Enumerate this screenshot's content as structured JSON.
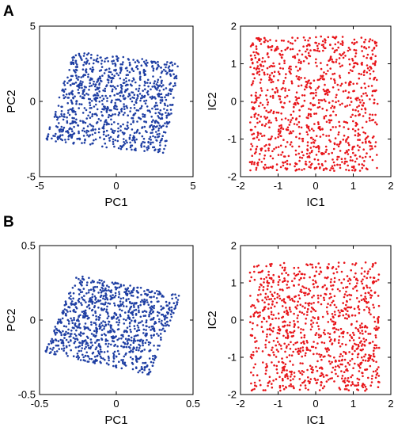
{
  "panels": [
    {
      "label": "A"
    },
    {
      "label": "B"
    }
  ],
  "chart_data": [
    {
      "type": "scatter",
      "panel": "A",
      "xlabel": "PC1",
      "ylabel": "PC2",
      "xlim": [
        -5,
        5
      ],
      "ylim": [
        -5,
        5
      ],
      "xticks": [
        -5,
        0,
        5
      ],
      "yticks": [
        -5,
        0,
        5
      ],
      "color": "#1f3fa3",
      "point_count": 1000,
      "region": {
        "corners": [
          [
            -4.6,
            -2.6
          ],
          [
            -2.8,
            3.3
          ],
          [
            4.1,
            2.6
          ],
          [
            3.2,
            -3.5
          ]
        ]
      },
      "seed": 11
    },
    {
      "type": "scatter",
      "panel": "A",
      "xlabel": "IC1",
      "ylabel": "IC2",
      "xlim": [
        -2,
        2
      ],
      "ylim": [
        -2,
        2
      ],
      "xticks": [
        -2,
        -1,
        0,
        1,
        2
      ],
      "yticks": [
        -2,
        -1,
        0,
        1,
        2
      ],
      "color": "#e8161b",
      "point_count": 1000,
      "region": {
        "corners": [
          [
            -1.75,
            -1.85
          ],
          [
            -1.75,
            1.7
          ],
          [
            1.65,
            1.75
          ],
          [
            1.65,
            -1.85
          ]
        ]
      },
      "seed": 23
    },
    {
      "type": "scatter",
      "panel": "B",
      "xlabel": "PC1",
      "ylabel": "PC2",
      "xlim": [
        -0.5,
        0.5
      ],
      "ylim": [
        -0.5,
        0.5
      ],
      "xticks": [
        -0.5,
        0,
        0.5
      ],
      "yticks": [
        -0.5,
        0,
        0.5
      ],
      "color": "#1f3fa3",
      "point_count": 1000,
      "region": {
        "corners": [
          [
            -0.47,
            -0.22
          ],
          [
            -0.26,
            0.3
          ],
          [
            0.42,
            0.17
          ],
          [
            0.22,
            -0.37
          ]
        ]
      },
      "seed": 37
    },
    {
      "type": "scatter",
      "panel": "B",
      "xlabel": "IC1",
      "ylabel": "IC2",
      "xlim": [
        -2,
        2
      ],
      "ylim": [
        -2,
        2
      ],
      "xticks": [
        -2,
        -1,
        0,
        1,
        2
      ],
      "yticks": [
        -2,
        -1,
        0,
        1,
        2
      ],
      "color": "#e8161b",
      "point_count": 1000,
      "region": {
        "corners": [
          [
            -1.75,
            -1.9
          ],
          [
            -1.75,
            1.55
          ],
          [
            1.7,
            1.55
          ],
          [
            1.7,
            -1.9
          ]
        ]
      },
      "seed": 41
    }
  ]
}
